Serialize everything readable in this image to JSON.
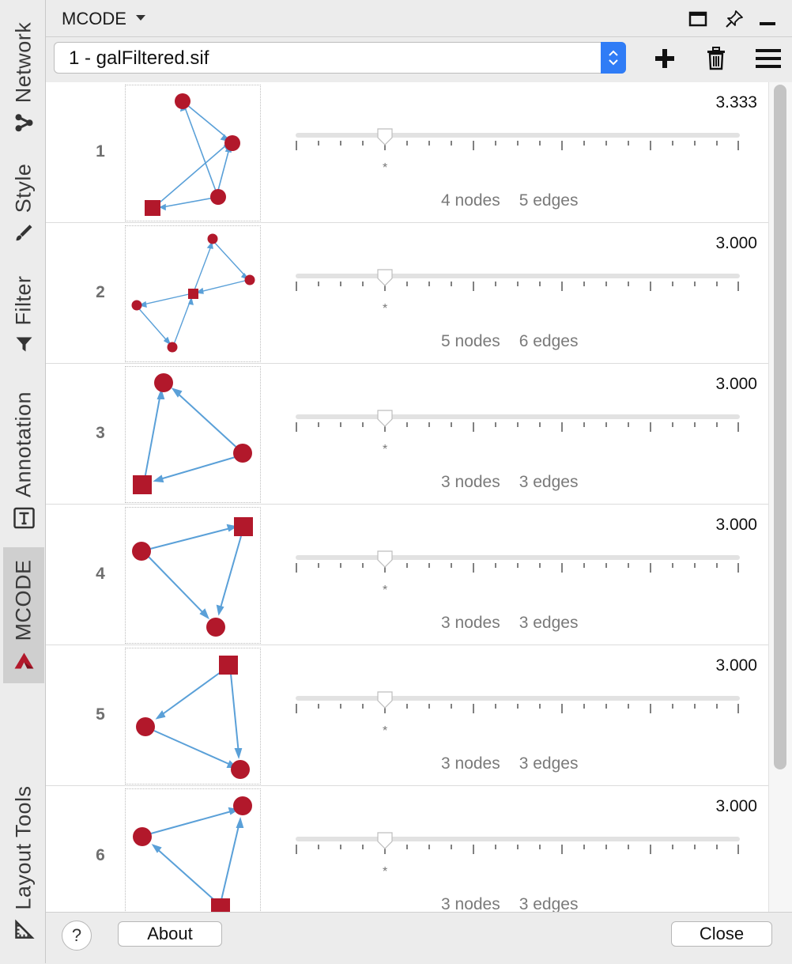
{
  "sidebar": {
    "tabs": [
      {
        "label": "Network",
        "icon": "network-icon",
        "active": false
      },
      {
        "label": "Style",
        "icon": "brush-icon",
        "active": false
      },
      {
        "label": "Filter",
        "icon": "funnel-icon",
        "active": false
      },
      {
        "label": "Annotation",
        "icon": "text-box-icon",
        "active": false
      },
      {
        "label": "MCODE",
        "icon": "mcode-logo-icon",
        "active": true
      },
      {
        "label": "Layout Tools",
        "icon": "ruler-icon",
        "active": false
      }
    ]
  },
  "panel": {
    "title": "MCODE",
    "header_icons": [
      "maximize-icon",
      "pin-icon",
      "minimize-icon"
    ]
  },
  "toolbar": {
    "network_select": "1 - galFiltered.sif",
    "tools": [
      "add-icon",
      "trash-icon",
      "menu-icon"
    ]
  },
  "clusters": [
    {
      "rank": "1",
      "score": "3.333",
      "nodes": "4 nodes",
      "edges": "5 edges",
      "slider_mark": "*"
    },
    {
      "rank": "2",
      "score": "3.000",
      "nodes": "5 nodes",
      "edges": "6 edges",
      "slider_mark": "*"
    },
    {
      "rank": "3",
      "score": "3.000",
      "nodes": "3 nodes",
      "edges": "3 edges",
      "slider_mark": "*"
    },
    {
      "rank": "4",
      "score": "3.000",
      "nodes": "3 nodes",
      "edges": "3 edges",
      "slider_mark": "*"
    },
    {
      "rank": "5",
      "score": "3.000",
      "nodes": "3 nodes",
      "edges": "3 edges",
      "slider_mark": "*"
    },
    {
      "rank": "6",
      "score": "3.000",
      "nodes": "3 nodes",
      "edges": "3 edges",
      "slider_mark": "*"
    }
  ],
  "colors": {
    "node": "#b2182b",
    "edge": "#5aa0d8",
    "accent": "#2f7cf6"
  },
  "footer": {
    "help_label": "?",
    "about_label": "About",
    "close_label": "Close"
  }
}
